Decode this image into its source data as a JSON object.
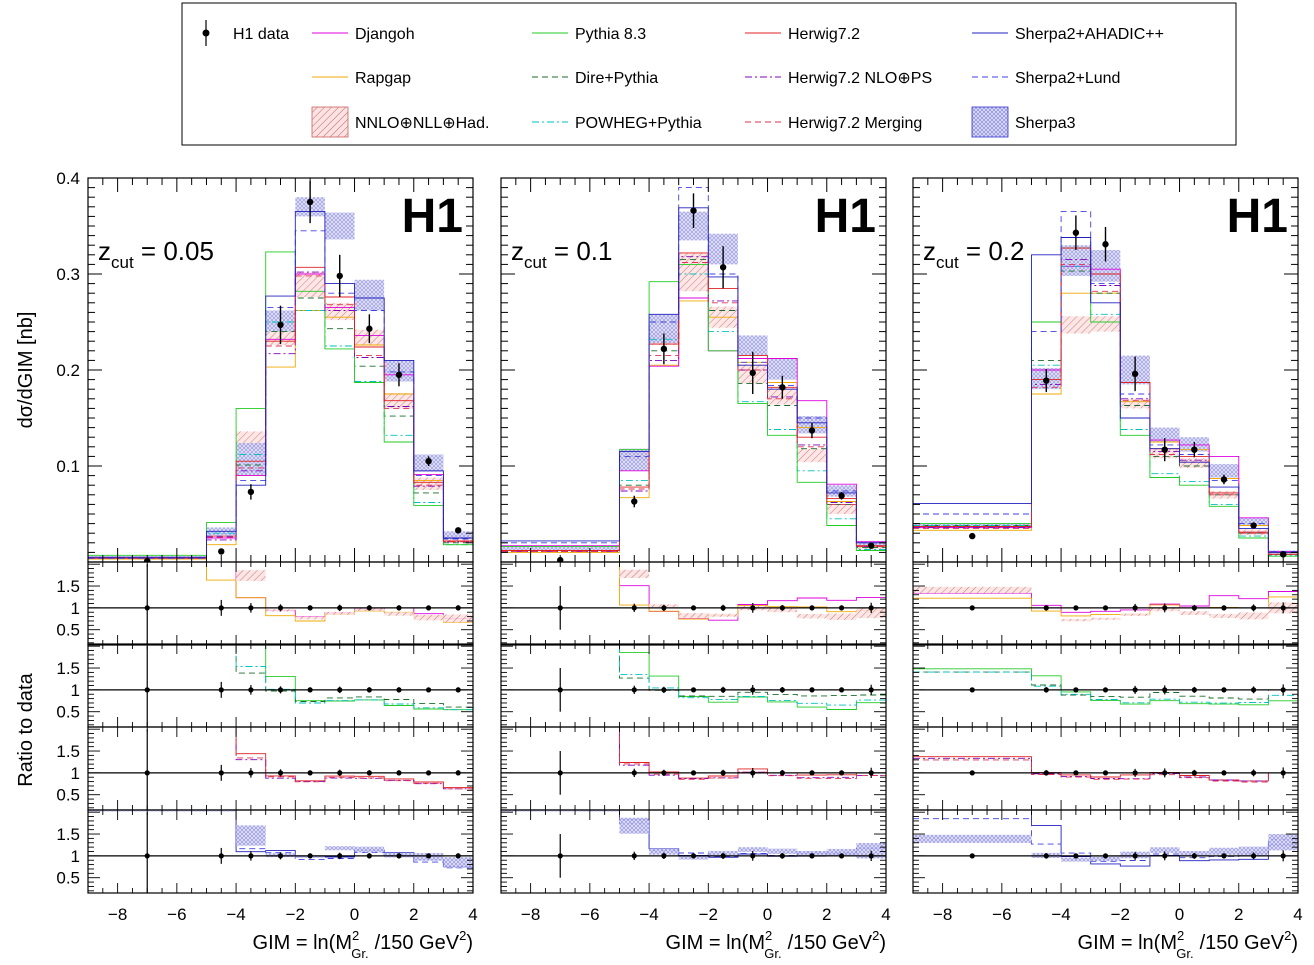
{
  "chart_data": {
    "type": "line",
    "x_axis": {
      "label_prefix": "GIM = ln(M",
      "label_sup": "2",
      "label_sub": "Gr.",
      "label_suffix": "/150 GeV",
      "label_suffix_sup": "2",
      "label_close": ")",
      "range": [
        -9,
        4
      ],
      "ticks": [
        "−8",
        "−6",
        "−4",
        "−2",
        "0",
        "2",
        "4"
      ],
      "tick_values": [
        -8,
        -6,
        -4,
        -2,
        0,
        2,
        4
      ]
    },
    "y_axis_main": {
      "label": "dσ/dGIM [nb]",
      "range": [
        0,
        0.4
      ],
      "ticks": [
        "0.1",
        "0.2",
        "0.3",
        "0.4"
      ],
      "tick_values": [
        0.1,
        0.2,
        0.3,
        0.4
      ]
    },
    "y_axis_ratio": {
      "label": "Ratio to data",
      "range": [
        0.15,
        2.05
      ],
      "ticks": [
        "0.5",
        "1",
        "1.5"
      ],
      "tick_values": [
        0.5,
        1,
        1.5
      ]
    },
    "h1_label": "H1",
    "bin_edges": [
      -9,
      -5,
      -4,
      -3,
      -2,
      -1,
      0,
      1,
      2,
      3,
      4
    ],
    "legend": [
      {
        "key": "h1data",
        "label": "H1 data",
        "color": "#000000",
        "style": "marker"
      },
      {
        "key": "djangoh",
        "label": "Djangoh",
        "color": "#e000e0",
        "style": "solid"
      },
      {
        "key": "pythia",
        "label": "Pythia 8.3",
        "color": "#22cc22",
        "style": "solid"
      },
      {
        "key": "herwig",
        "label": "Herwig7.2",
        "color": "#e02020",
        "style": "solid"
      },
      {
        "key": "sherpa2a",
        "label": "Sherpa2+AHADIC++",
        "color": "#2020c0",
        "style": "solid"
      },
      {
        "key": "rapgap",
        "label": "Rapgap",
        "color": "#f0a800",
        "style": "solid"
      },
      {
        "key": "dire",
        "label": "Dire+Pythia",
        "color": "#1a6b2a",
        "style": "dashed"
      },
      {
        "key": "herwignlo",
        "label": "Herwig7.2 NLO⊕PS",
        "color": "#8000c0",
        "style": "dashdot"
      },
      {
        "key": "sherpa2l",
        "label": "Sherpa2+Lund",
        "color": "#4040e0",
        "style": "dashed"
      },
      {
        "key": "nnlo",
        "label": "NNLO⊕NLL⊕Had.",
        "color": "#cc6060",
        "style": "band"
      },
      {
        "key": "powheg",
        "label": "POWHEG+Pythia",
        "color": "#00c0c0",
        "style": "dashdot"
      },
      {
        "key": "herwigmerge",
        "label": "Herwig7.2 Merging",
        "color": "#e03050",
        "style": "dashed"
      },
      {
        "key": "sherpa3",
        "label": "Sherpa3",
        "color": "#3030d0",
        "style": "band"
      }
    ],
    "panels": [
      {
        "zcut_label": "z",
        "zcut_sub": "cut",
        "zcut_value": " = 0.05",
        "data": {
          "x": [
            -7,
            -4.5,
            -3.5,
            -2.5,
            -1.5,
            -0.5,
            0.5,
            1.5,
            2.5,
            3.5
          ],
          "y": [
            0.001,
            0.011,
            0.073,
            0.247,
            0.375,
            0.298,
            0.243,
            0.195,
            0.105,
            0.033
          ],
          "err": [
            0.001,
            0.002,
            0.008,
            0.02,
            0.022,
            0.022,
            0.015,
            0.012,
            0.005,
            0.002
          ]
        },
        "models": {
          "djangoh": [
            0.004,
            0.025,
            0.09,
            0.232,
            0.3,
            0.265,
            0.236,
            0.195,
            0.091,
            0.025
          ],
          "pythia": [
            0.007,
            0.041,
            0.16,
            0.323,
            0.282,
            0.222,
            0.187,
            0.125,
            0.059,
            0.018
          ],
          "herwig": [
            0.004,
            0.027,
            0.105,
            0.23,
            0.307,
            0.276,
            0.224,
            0.168,
            0.083,
            0.022
          ],
          "sherpa2a": [
            0.005,
            0.032,
            0.08,
            0.277,
            0.365,
            0.29,
            0.275,
            0.21,
            0.095,
            0.025
          ],
          "rapgap": [
            0.003,
            0.018,
            0.09,
            0.203,
            0.262,
            0.255,
            0.226,
            0.175,
            0.085,
            0.022
          ],
          "dire": [
            0.004,
            0.026,
            0.101,
            0.24,
            0.275,
            0.243,
            0.204,
            0.152,
            0.072,
            0.02
          ],
          "herwignlo": [
            0.004,
            0.023,
            0.095,
            0.217,
            0.302,
            0.262,
            0.213,
            0.162,
            0.079,
            0.021
          ],
          "sherpa2l": [
            0.004,
            0.027,
            0.085,
            0.265,
            0.345,
            0.28,
            0.262,
            0.198,
            0.09,
            0.024
          ],
          "powheg": [
            0.004,
            0.03,
            0.112,
            0.25,
            0.262,
            0.225,
            0.188,
            0.132,
            0.062,
            0.018
          ],
          "herwigmerge": [
            0.004,
            0.026,
            0.098,
            0.225,
            0.298,
            0.268,
            0.215,
            0.16,
            0.08,
            0.021
          ],
          "nnlo": [
            [
              0.0,
              0.0
            ],
            [
              0.0,
              0.0
            ],
            [
              0.118,
              0.136
            ],
            [
              0.226,
              0.24
            ],
            [
              0.276,
              0.302
            ],
            [
              0.252,
              0.27
            ],
            [
              0.226,
              0.242
            ],
            [
              0.16,
              0.176
            ],
            [
              0.075,
              0.088
            ],
            [
              0.022,
              0.028
            ]
          ],
          "sherpa3": [
            [
              0.004,
              0.006
            ],
            [
              0.028,
              0.036
            ],
            [
              0.09,
              0.124
            ],
            [
              0.24,
              0.262
            ],
            [
              0.36,
              0.38
            ],
            [
              0.336,
              0.364
            ],
            [
              0.262,
              0.294
            ],
            [
              0.188,
              0.21
            ],
            [
              0.094,
              0.112
            ],
            [
              0.024,
              0.032
            ]
          ]
        }
      },
      {
        "zcut_label": "z",
        "zcut_sub": "cut",
        "zcut_value": " = 0.1",
        "data": {
          "x": [
            -7,
            -4.5,
            -3.5,
            -2.5,
            -1.5,
            -0.5,
            0.5,
            1.5,
            2.5,
            3.5
          ],
          "y": [
            0.002,
            0.063,
            0.222,
            0.366,
            0.307,
            0.197,
            0.182,
            0.137,
            0.069,
            0.017
          ],
          "err": [
            0.001,
            0.006,
            0.016,
            0.018,
            0.022,
            0.022,
            0.012,
            0.008,
            0.004,
            0.002
          ]
        },
        "models": {
          "djangoh": [
            0.017,
            0.095,
            0.204,
            0.275,
            0.22,
            0.212,
            0.212,
            0.168,
            0.081,
            0.021
          ],
          "pythia": [
            0.016,
            0.117,
            0.292,
            0.31,
            0.22,
            0.165,
            0.132,
            0.083,
            0.038,
            0.012
          ],
          "herwig": [
            0.012,
            0.078,
            0.227,
            0.322,
            0.285,
            0.215,
            0.182,
            0.13,
            0.066,
            0.017
          ],
          "sherpa2a": [
            0.022,
            0.115,
            0.258,
            0.369,
            0.297,
            0.205,
            0.18,
            0.145,
            0.072,
            0.02
          ],
          "rapgap": [
            0.01,
            0.067,
            0.205,
            0.272,
            0.255,
            0.208,
            0.187,
            0.14,
            0.063,
            0.016
          ],
          "dire": [
            0.012,
            0.08,
            0.22,
            0.315,
            0.262,
            0.186,
            0.163,
            0.118,
            0.06,
            0.015
          ],
          "herwignlo": [
            0.011,
            0.074,
            0.21,
            0.318,
            0.272,
            0.2,
            0.172,
            0.122,
            0.062,
            0.016
          ],
          "sherpa2l": [
            0.02,
            0.11,
            0.25,
            0.39,
            0.3,
            0.208,
            0.184,
            0.15,
            0.074,
            0.02
          ],
          "powheg": [
            0.012,
            0.085,
            0.232,
            0.3,
            0.24,
            0.167,
            0.138,
            0.095,
            0.045,
            0.013
          ],
          "herwigmerge": [
            0.011,
            0.076,
            0.215,
            0.312,
            0.27,
            0.2,
            0.17,
            0.12,
            0.06,
            0.016
          ],
          "nnlo": [
            [
              0.0,
              0.0
            ],
            [
              0.106,
              0.118
            ],
            [
              0.226,
              0.24
            ],
            [
              0.282,
              0.322
            ],
            [
              0.244,
              0.266
            ],
            [
              0.186,
              0.206
            ],
            [
              0.164,
              0.182
            ],
            [
              0.104,
              0.118
            ],
            [
              0.05,
              0.06
            ],
            [
              0.013,
              0.017
            ]
          ],
          "sherpa3": [
            [
              0.012,
              0.016
            ],
            [
              0.095,
              0.118
            ],
            [
              0.228,
              0.258
            ],
            [
              0.335,
              0.365
            ],
            [
              0.31,
              0.342
            ],
            [
              0.215,
              0.236
            ],
            [
              0.19,
              0.212
            ],
            [
              0.134,
              0.152
            ],
            [
              0.068,
              0.08
            ],
            [
              0.016,
              0.022
            ]
          ]
        }
      },
      {
        "zcut_label": "z",
        "zcut_sub": "cut",
        "zcut_value": " = 0.2",
        "data": {
          "x": [
            -7,
            -4.5,
            -3.5,
            -2.5,
            -1.5,
            -0.5,
            0.5,
            1.5,
            2.5,
            3.5
          ],
          "y": [
            0.027,
            0.189,
            0.343,
            0.331,
            0.196,
            0.117,
            0.117,
            0.086,
            0.038,
            0.008
          ],
          "err": [
            0.001,
            0.012,
            0.018,
            0.018,
            0.018,
            0.012,
            0.008,
            0.005,
            0.003,
            0.001
          ]
        },
        "models": {
          "djangoh": [
            0.036,
            0.2,
            0.308,
            0.305,
            0.187,
            0.127,
            0.122,
            0.11,
            0.046,
            0.011
          ],
          "pythia": [
            0.04,
            0.25,
            0.327,
            0.25,
            0.132,
            0.088,
            0.08,
            0.058,
            0.025,
            0.006
          ],
          "herwig": [
            0.037,
            0.19,
            0.327,
            0.3,
            0.187,
            0.118,
            0.11,
            0.072,
            0.031,
            0.008
          ],
          "sherpa2a": [
            0.061,
            0.32,
            0.338,
            0.27,
            0.15,
            0.118,
            0.104,
            0.078,
            0.035,
            0.01
          ],
          "rapgap": [
            0.033,
            0.175,
            0.28,
            0.28,
            0.167,
            0.125,
            0.117,
            0.087,
            0.038,
            0.01
          ],
          "dire": [
            0.038,
            0.21,
            0.303,
            0.28,
            0.163,
            0.11,
            0.1,
            0.07,
            0.03,
            0.008
          ],
          "herwignlo": [
            0.036,
            0.185,
            0.315,
            0.288,
            0.17,
            0.115,
            0.106,
            0.072,
            0.031,
            0.008
          ],
          "sherpa2l": [
            0.05,
            0.24,
            0.365,
            0.29,
            0.175,
            0.122,
            0.112,
            0.085,
            0.04,
            0.011
          ],
          "powheg": [
            0.038,
            0.205,
            0.308,
            0.258,
            0.138,
            0.092,
            0.084,
            0.06,
            0.027,
            0.007
          ],
          "herwigmerge": [
            0.035,
            0.182,
            0.31,
            0.282,
            0.168,
            0.112,
            0.104,
            0.07,
            0.03,
            0.008
          ],
          "nnlo": [
            [
              0.036,
              0.04
            ],
            [
              0.0,
              0.0
            ],
            [
              0.238,
              0.256
            ],
            [
              0.24,
              0.256
            ],
            [
              0.16,
              0.17
            ],
            [
              0.108,
              0.118
            ],
            [
              0.098,
              0.108
            ],
            [
              0.066,
              0.074
            ],
            [
              0.028,
              0.034
            ],
            [
              0.007,
              0.009
            ]
          ],
          "sherpa3": [
            [
              0.035,
              0.04
            ],
            [
              0.18,
              0.202
            ],
            [
              0.298,
              0.33
            ],
            [
              0.292,
              0.325
            ],
            [
              0.185,
              0.215
            ],
            [
              0.125,
              0.14
            ],
            [
              0.115,
              0.13
            ],
            [
              0.088,
              0.102
            ],
            [
              0.038,
              0.046
            ],
            [
              0.009,
              0.012
            ]
          ]
        }
      }
    ],
    "ratio_rows": [
      [
        "djangoh",
        "rapgap",
        "nnlo"
      ],
      [
        "pythia",
        "dire",
        "powheg"
      ],
      [
        "herwig",
        "herwignlo",
        "herwigmerge"
      ],
      [
        "sherpa2a",
        "sherpa2l",
        "sherpa3"
      ]
    ]
  }
}
